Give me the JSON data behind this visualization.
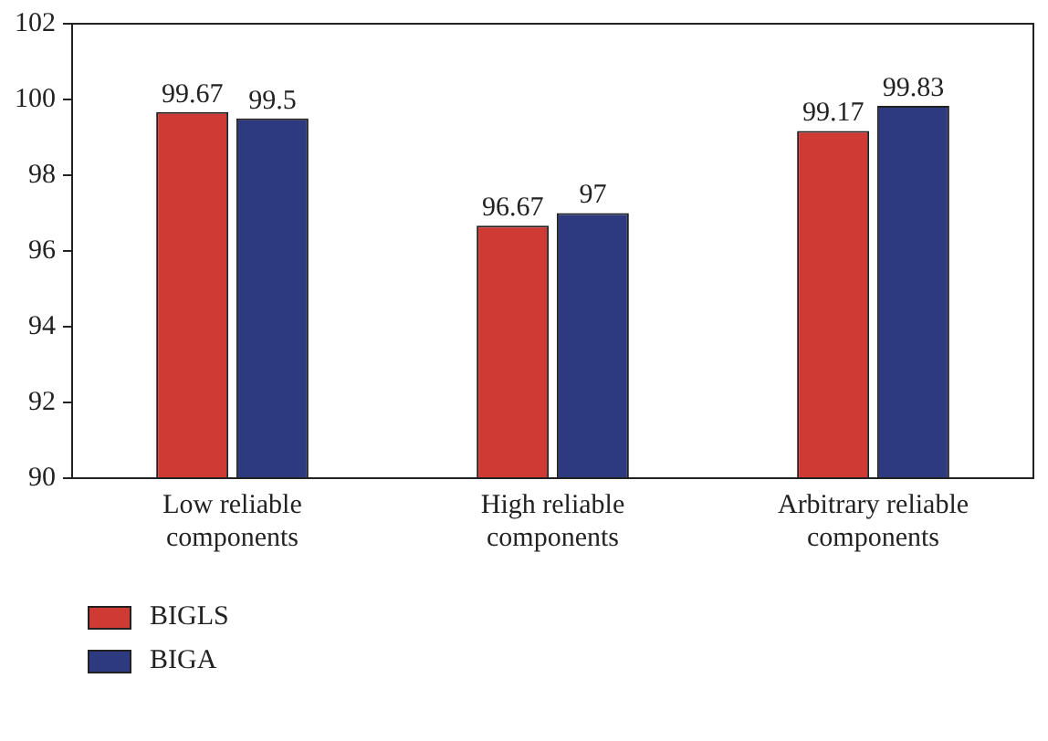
{
  "chart_data": {
    "type": "bar",
    "categories": [
      "Low reliable components",
      "High reliable components",
      "Arbitrary reliable components"
    ],
    "series": [
      {
        "name": "BIGLS",
        "color": "#d03a35",
        "values": [
          99.67,
          96.67,
          99.17
        ]
      },
      {
        "name": "BIGA",
        "color": "#2e3a80",
        "values": [
          99.5,
          97,
          99.83
        ]
      }
    ],
    "ylim": [
      90,
      102
    ],
    "yticks": [
      90,
      92,
      94,
      96,
      98,
      100,
      102
    ],
    "grid": false,
    "legend": "bottom left",
    "data_labels": true
  }
}
